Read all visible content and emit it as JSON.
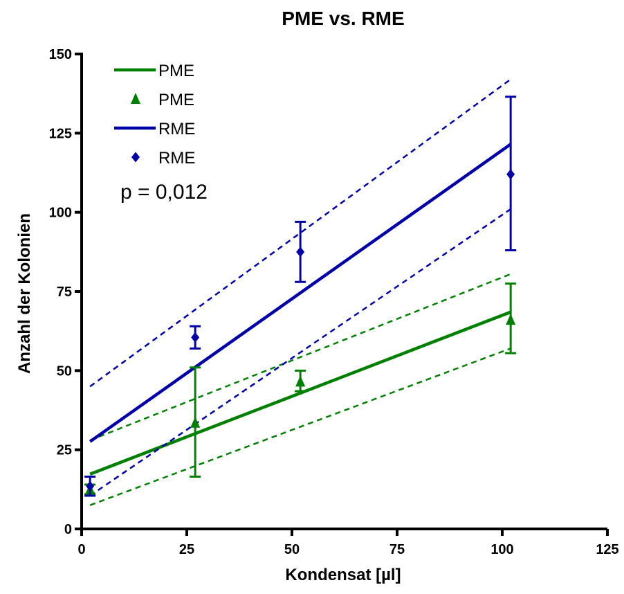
{
  "chart_data": {
    "type": "scatter",
    "title": "PME vs. RME",
    "xlabel": "Kondensat [µl]",
    "ylabel": "Anzahl der Kolonien",
    "xlim": [
      0,
      125
    ],
    "ylim": [
      0,
      150
    ],
    "xticks": [
      "0",
      "25",
      "50",
      "75",
      "100",
      "125"
    ],
    "yticks": [
      "0",
      "25",
      "50",
      "75",
      "100",
      "125",
      "150"
    ],
    "grid": false,
    "legend_position": "top-left",
    "annotation": "p = 0,012",
    "legend": [
      "PME",
      "PME",
      "RME",
      "RME"
    ],
    "series": [
      {
        "name": "PME",
        "kind": "points",
        "marker": "triangle",
        "color": "#008000",
        "x": [
          2,
          27,
          52,
          102
        ],
        "y": [
          12.5,
          33.5,
          46.5,
          66
        ],
        "err_low": [
          11,
          16.5,
          43.5,
          55.5
        ],
        "err_high": [
          14,
          51,
          50,
          77.5
        ]
      },
      {
        "name": "RME",
        "kind": "points",
        "marker": "diamond",
        "color": "#0000aa",
        "x": [
          2,
          27,
          52,
          102
        ],
        "y": [
          13.5,
          60.5,
          87.5,
          112
        ],
        "err_low": [
          10.5,
          57,
          78,
          88
        ],
        "err_high": [
          16.5,
          64,
          97,
          136.5
        ]
      },
      {
        "name": "PME",
        "kind": "regression",
        "color": "#008000",
        "x": [
          2,
          102
        ],
        "fit": [
          17.3,
          68.5
        ],
        "ci_upper": [
          28,
          80.5
        ],
        "ci_lower": [
          7.5,
          57
        ]
      },
      {
        "name": "RME",
        "kind": "regression",
        "color": "#0000aa",
        "x": [
          2,
          102
        ],
        "fit": [
          27.6,
          121.5
        ],
        "ci_upper": [
          45,
          142
        ],
        "ci_lower": [
          10.5,
          101
        ]
      }
    ]
  }
}
